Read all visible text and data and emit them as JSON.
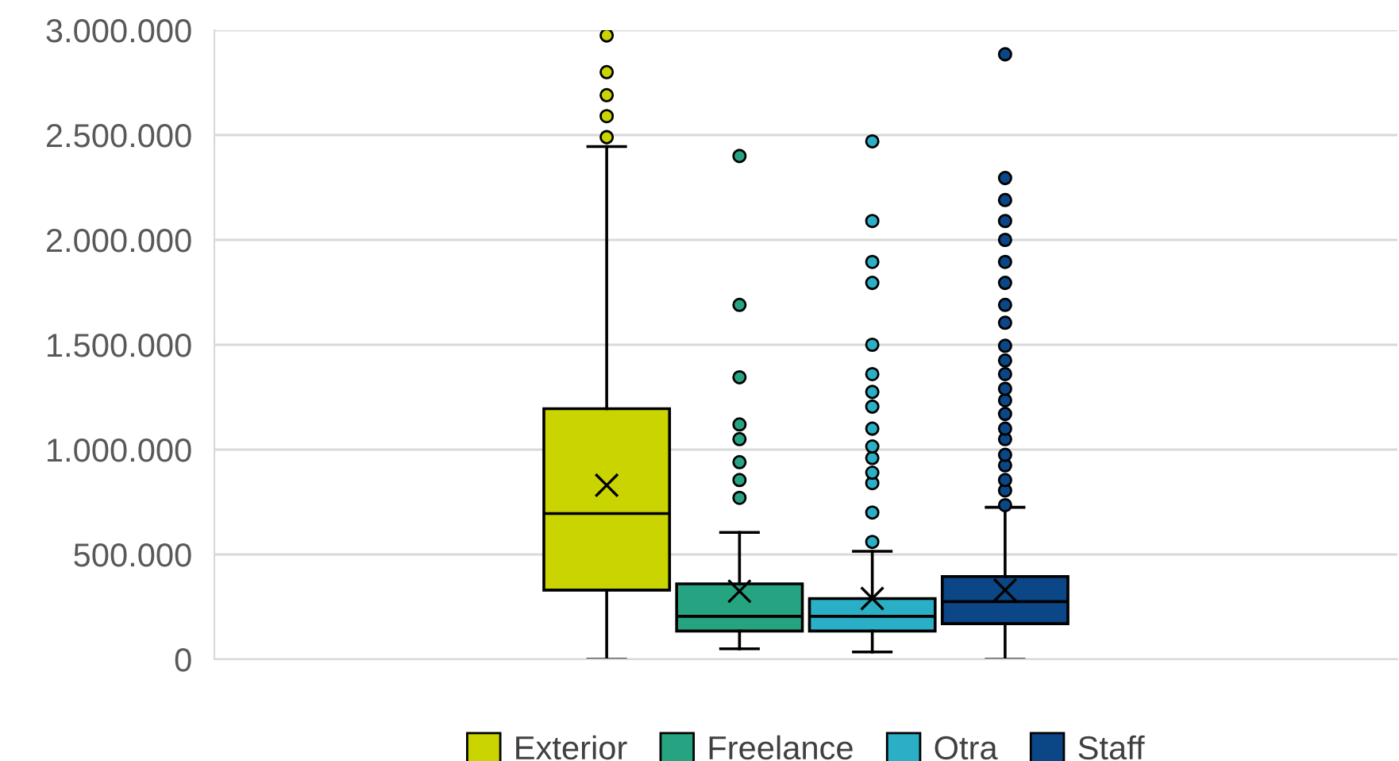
{
  "chart_data": {
    "type": "box",
    "categories": [
      null
    ],
    "series": [
      {
        "name": "Exterior",
        "color": "#c9d400",
        "boxes": [
          {
            "low": 0,
            "q1": 330000,
            "median": 695000,
            "q3": 1195000,
            "high": 2445000,
            "mean": 830000,
            "outliers": [
              2490000,
              2590000,
              2690000,
              2800000,
              2975000
            ]
          }
        ]
      },
      {
        "name": "Freelance",
        "color": "#26a482",
        "boxes": [
          {
            "low": 50000,
            "q1": 135000,
            "median": 205000,
            "q3": 360000,
            "high": 605000,
            "mean": 325000,
            "outliers": [
              770000,
              855000,
              940000,
              1050000,
              1120000,
              1345000,
              1690000,
              2400000
            ]
          }
        ]
      },
      {
        "name": "Otra",
        "color": "#2aafc6",
        "boxes": [
          {
            "low": 35000,
            "q1": 135000,
            "median": 205000,
            "q3": 290000,
            "high": 515000,
            "mean": 290000,
            "outliers": [
              560000,
              700000,
              840000,
              890000,
              960000,
              1015000,
              1100000,
              1205000,
              1275000,
              1360000,
              1500000,
              1795000,
              1895000,
              2090000,
              2470000
            ]
          }
        ]
      },
      {
        "name": "Staff",
        "color": "#0b4686",
        "boxes": [
          {
            "low": 0,
            "q1": 170000,
            "median": 275000,
            "q3": 395000,
            "high": 725000,
            "mean": 330000,
            "outliers": [
              735000,
              805000,
              855000,
              925000,
              975000,
              1050000,
              1100000,
              1170000,
              1235000,
              1290000,
              1360000,
              1425000,
              1495000,
              1605000,
              1690000,
              1795000,
              1895000,
              2000000,
              2090000,
              2190000,
              2295000,
              2885000
            ]
          }
        ]
      }
    ],
    "ylim": [
      0,
      3000000
    ],
    "yticks": [
      0,
      {
        "value": 500000,
        "label": "500.000"
      },
      {
        "value": 1000000,
        "label": "1.000.000"
      },
      {
        "value": 1500000,
        "label": "1.500.000"
      },
      {
        "value": 2000000,
        "label": "2.000.000"
      },
      {
        "value": 2500000,
        "label": "2.500.000"
      },
      {
        "value": 3000000,
        "label": "3.000.000"
      }
    ],
    "grid": "y",
    "legend": "bottom",
    "marker": "circle"
  }
}
